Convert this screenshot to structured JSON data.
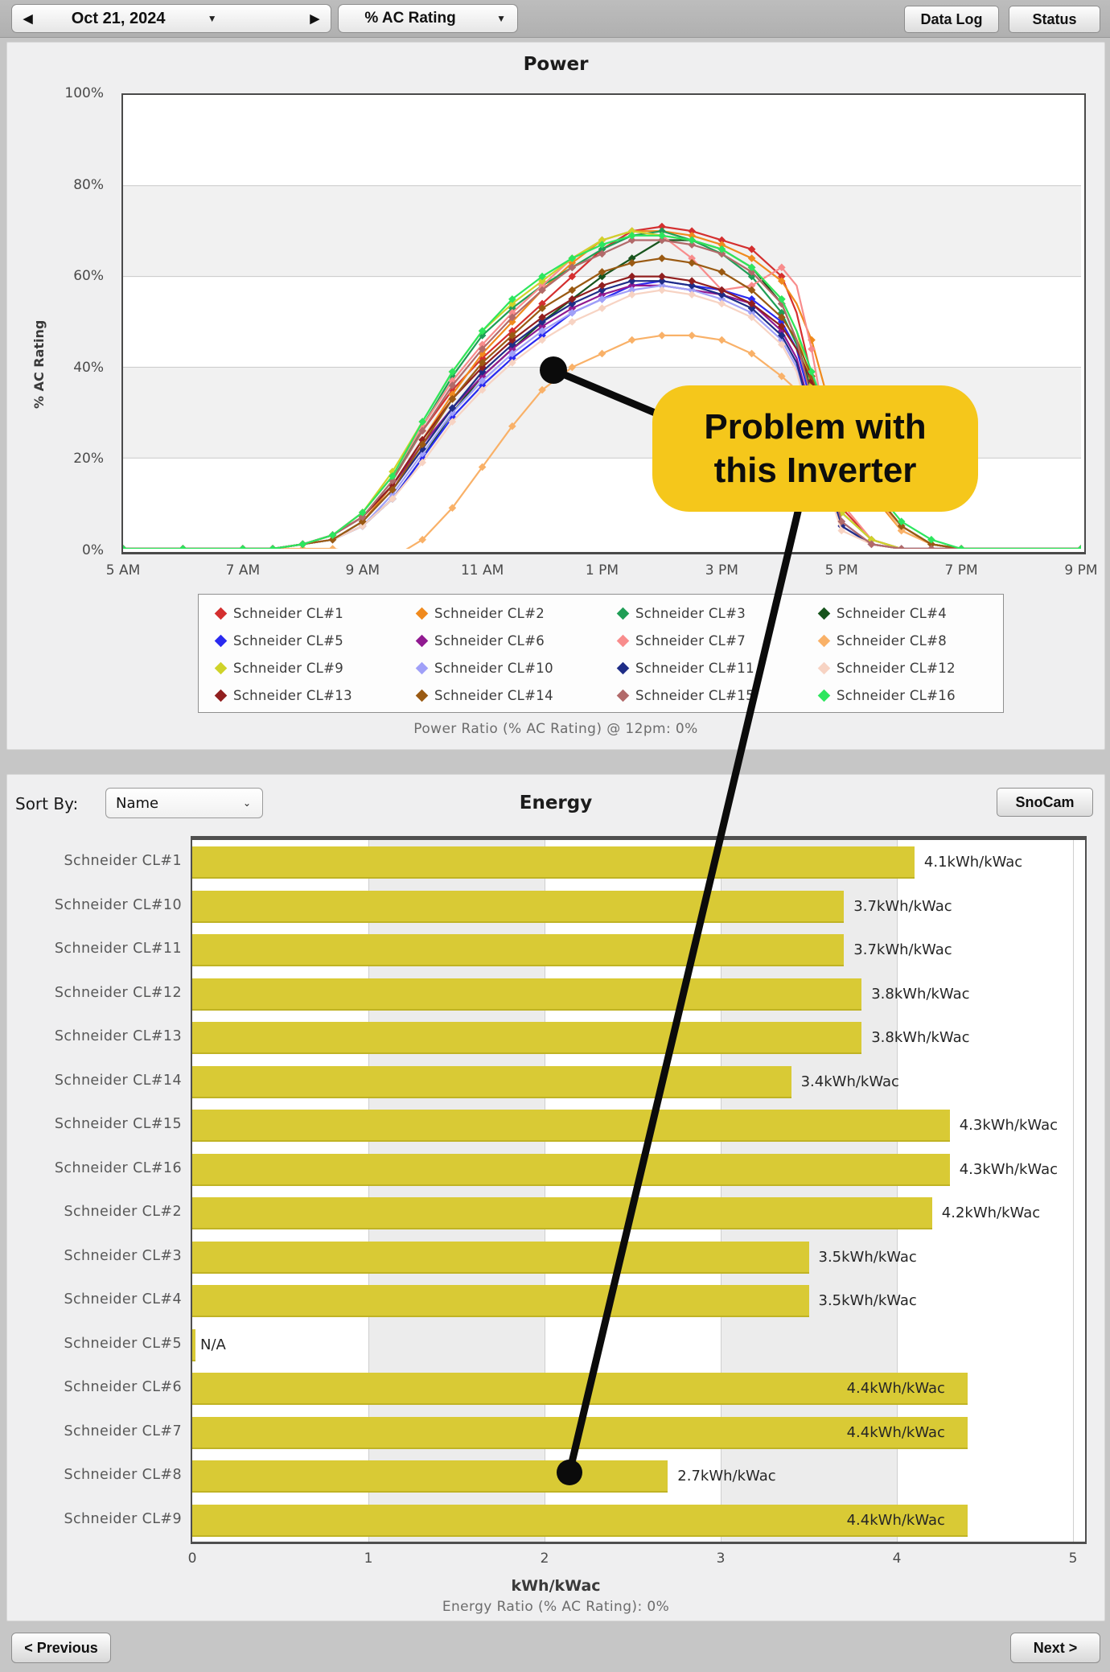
{
  "toolbar": {
    "date": "Oct 21, 2024",
    "metric_selector": "% AC Rating",
    "data_log_label": "Data Log",
    "status_label": "Status",
    "prev_day_icon": "◀",
    "next_day_icon": "▶",
    "dropdown_caret_icon": "▼"
  },
  "power_section": {
    "title": "Power",
    "y_axis_title": "% AC Rating",
    "caption": "Power Ratio (% AC Rating) @ 12pm: 0%"
  },
  "energy_section": {
    "title": "Energy",
    "sort_by_label": "Sort By:",
    "sort_by_value": "Name",
    "snocam_label": "SnoCam",
    "x_axis_title": "kWh/kWac",
    "caption": "Energy Ratio (% AC Rating): 0%",
    "bar_color": "#d9ca35"
  },
  "annotation": {
    "line1": "Problem with",
    "line2": "this Inverter",
    "callout_color": "#f5c71b"
  },
  "nav": {
    "previous_label": "< Previous",
    "next_label": "Next >"
  },
  "chart_data": [
    {
      "type": "line",
      "title": "Power",
      "ylabel": "% AC Rating",
      "ylim": [
        0,
        100
      ],
      "y_ticks": [
        "100%",
        "80%",
        "60%",
        "40%",
        "20%",
        "0%"
      ],
      "x_ticks": [
        "5 AM",
        "7 AM",
        "9 AM",
        "11 AM",
        "1 PM",
        "3 PM",
        "5 PM",
        "7 PM",
        "9 PM"
      ],
      "x_range_hours": [
        5,
        21
      ],
      "grid": "horizontal",
      "legend_position": "bottom",
      "x": [
        5,
        6,
        7,
        7.5,
        8,
        8.5,
        9,
        9.5,
        10,
        10.5,
        11,
        11.5,
        12,
        12.5,
        13,
        13.5,
        14,
        14.5,
        15,
        15.5,
        16,
        16.25,
        16.5,
        16.75,
        17,
        17.5,
        18,
        18.5,
        19,
        21
      ],
      "series": [
        {
          "name": "Schneider CL#1",
          "color": "#d42f2f",
          "values": [
            0,
            0,
            0,
            0,
            1,
            3,
            8,
            16,
            26,
            35,
            42,
            48,
            54,
            60,
            66,
            70,
            71,
            70,
            68,
            66,
            60,
            52,
            38,
            22,
            9,
            2,
            0,
            0,
            0,
            0
          ]
        },
        {
          "name": "Schneider CL#2",
          "color": "#f08a1d",
          "values": [
            0,
            0,
            0,
            0,
            1,
            2,
            6,
            14,
            24,
            34,
            43,
            50,
            57,
            63,
            68,
            70,
            70,
            69,
            67,
            64,
            59,
            54,
            46,
            34,
            22,
            12,
            4,
            1,
            0,
            0
          ]
        },
        {
          "name": "Schneider CL#3",
          "color": "#1f9e56",
          "values": [
            0,
            0,
            0,
            0,
            1,
            3,
            7,
            15,
            27,
            38,
            47,
            53,
            58,
            62,
            66,
            69,
            70,
            68,
            65,
            60,
            52,
            45,
            36,
            28,
            22,
            13,
            5,
            1,
            0,
            0
          ]
        },
        {
          "name": "Schneider CL#4",
          "color": "#17541d",
          "values": [
            0,
            0,
            0,
            0,
            1,
            2,
            5,
            11,
            20,
            30,
            38,
            44,
            50,
            55,
            60,
            64,
            68,
            68,
            66,
            62,
            54,
            46,
            34,
            20,
            8,
            2,
            0,
            0,
            0,
            0
          ]
        },
        {
          "name": "Schneider CL#5",
          "color": "#2a2af0",
          "values": [
            0,
            0,
            0,
            0,
            1,
            2,
            5,
            11,
            20,
            29,
            36,
            42,
            47,
            52,
            55,
            58,
            59,
            58,
            57,
            55,
            50,
            44,
            32,
            18,
            6,
            1,
            0,
            0,
            0,
            0
          ]
        },
        {
          "name": "Schneider CL#6",
          "color": "#911a91",
          "values": [
            0,
            0,
            0,
            0,
            1,
            3,
            7,
            14,
            23,
            31,
            38,
            44,
            49,
            53,
            56,
            58,
            58,
            57,
            56,
            54,
            48,
            42,
            30,
            16,
            5,
            1,
            0,
            0,
            0,
            0
          ]
        },
        {
          "name": "Schneider CL#7",
          "color": "#f88c8c",
          "values": [
            0,
            0,
            0,
            0,
            1,
            3,
            8,
            16,
            27,
            37,
            45,
            52,
            58,
            64,
            68,
            70,
            69,
            64,
            57,
            58,
            62,
            58,
            44,
            26,
            10,
            2,
            0,
            0,
            0,
            0
          ]
        },
        {
          "name": "Schneider CL#8",
          "color": "#f9b168",
          "values": [
            0,
            0,
            0,
            0,
            0,
            0,
            -1,
            -2,
            2,
            9,
            18,
            27,
            35,
            40,
            43,
            46,
            47,
            47,
            46,
            43,
            38,
            35,
            31,
            27,
            22,
            13,
            4,
            1,
            0,
            0
          ]
        },
        {
          "name": "Schneider CL#9",
          "color": "#cfd32a",
          "values": [
            0,
            0,
            0,
            0,
            1,
            3,
            8,
            17,
            28,
            39,
            48,
            54,
            59,
            64,
            68,
            70,
            69,
            68,
            66,
            62,
            55,
            48,
            36,
            22,
            8,
            2,
            0,
            0,
            0,
            0
          ]
        },
        {
          "name": "Schneider CL#10",
          "color": "#a0a0f8",
          "values": [
            0,
            0,
            0,
            0,
            1,
            2,
            5,
            12,
            21,
            30,
            37,
            43,
            48,
            52,
            55,
            57,
            58,
            57,
            55,
            52,
            46,
            40,
            28,
            15,
            5,
            1,
            0,
            0,
            0,
            0
          ]
        },
        {
          "name": "Schneider CL#11",
          "color": "#1f2d87",
          "values": [
            0,
            0,
            0,
            0,
            1,
            2,
            6,
            13,
            22,
            31,
            39,
            45,
            50,
            54,
            57,
            59,
            59,
            58,
            56,
            53,
            47,
            41,
            29,
            16,
            5,
            1,
            0,
            0,
            0,
            0
          ]
        },
        {
          "name": "Schneider CL#12",
          "color": "#f7d3c3",
          "values": [
            0,
            0,
            0,
            0,
            1,
            2,
            5,
            11,
            19,
            28,
            35,
            41,
            46,
            50,
            53,
            56,
            57,
            56,
            54,
            51,
            45,
            39,
            27,
            14,
            4,
            1,
            0,
            0,
            0,
            0
          ]
        },
        {
          "name": "Schneider CL#13",
          "color": "#911f1f",
          "values": [
            0,
            0,
            0,
            0,
            1,
            3,
            7,
            14,
            24,
            33,
            40,
            46,
            51,
            55,
            58,
            60,
            60,
            59,
            57,
            54,
            49,
            44,
            37,
            29,
            22,
            13,
            5,
            1,
            0,
            0
          ]
        },
        {
          "name": "Schneider CL#14",
          "color": "#9a5a13",
          "values": [
            0,
            0,
            0,
            0,
            1,
            2,
            6,
            13,
            23,
            33,
            41,
            47,
            53,
            57,
            61,
            63,
            64,
            63,
            61,
            57,
            51,
            46,
            38,
            30,
            23,
            13,
            5,
            1,
            0,
            0
          ]
        },
        {
          "name": "Schneider CL#15",
          "color": "#b26a6a",
          "values": [
            0,
            0,
            0,
            0,
            1,
            3,
            7,
            15,
            26,
            36,
            44,
            51,
            57,
            62,
            65,
            68,
            68,
            67,
            65,
            61,
            54,
            46,
            33,
            18,
            6,
            1,
            0,
            0,
            0,
            0
          ]
        },
        {
          "name": "Schneider CL#16",
          "color": "#2de65e",
          "values": [
            0,
            0,
            0,
            0,
            1,
            3,
            8,
            16,
            28,
            39,
            48,
            55,
            60,
            64,
            67,
            69,
            69,
            68,
            66,
            62,
            55,
            48,
            39,
            30,
            23,
            14,
            6,
            2,
            0,
            0
          ]
        }
      ]
    },
    {
      "type": "bar",
      "title": "Energy",
      "xlabel": "kWh/kWac",
      "xlim": [
        0,
        5
      ],
      "x_ticks": [
        "0",
        "1",
        "2",
        "3",
        "4",
        "5"
      ],
      "grid": "vertical",
      "rows": [
        {
          "label": "Schneider CL#1",
          "value": 4.1,
          "display": "4.1kWh/kWac",
          "label_inside": false
        },
        {
          "label": "Schneider CL#10",
          "value": 3.7,
          "display": "3.7kWh/kWac",
          "label_inside": false
        },
        {
          "label": "Schneider CL#11",
          "value": 3.7,
          "display": "3.7kWh/kWac",
          "label_inside": false
        },
        {
          "label": "Schneider CL#12",
          "value": 3.8,
          "display": "3.8kWh/kWac",
          "label_inside": false
        },
        {
          "label": "Schneider CL#13",
          "value": 3.8,
          "display": "3.8kWh/kWac",
          "label_inside": false
        },
        {
          "label": "Schneider CL#14",
          "value": 3.4,
          "display": "3.4kWh/kWac",
          "label_inside": false
        },
        {
          "label": "Schneider CL#15",
          "value": 4.3,
          "display": "4.3kWh/kWac",
          "label_inside": false
        },
        {
          "label": "Schneider CL#16",
          "value": 4.3,
          "display": "4.3kWh/kWac",
          "label_inside": false
        },
        {
          "label": "Schneider CL#2",
          "value": 4.2,
          "display": "4.2kWh/kWac",
          "label_inside": false
        },
        {
          "label": "Schneider CL#3",
          "value": 3.5,
          "display": "3.5kWh/kWac",
          "label_inside": false
        },
        {
          "label": "Schneider CL#4",
          "value": 3.5,
          "display": "3.5kWh/kWac",
          "label_inside": false
        },
        {
          "label": "Schneider CL#5",
          "value": null,
          "display": "N/A",
          "label_inside": false
        },
        {
          "label": "Schneider CL#6",
          "value": 4.4,
          "display": "4.4kWh/kWac",
          "label_inside": true
        },
        {
          "label": "Schneider CL#7",
          "value": 4.4,
          "display": "4.4kWh/kWac",
          "label_inside": true
        },
        {
          "label": "Schneider CL#8",
          "value": 2.7,
          "display": "2.7kWh/kWac",
          "label_inside": false
        },
        {
          "label": "Schneider CL#9",
          "value": 4.4,
          "display": "4.4kWh/kWac",
          "label_inside": true
        }
      ]
    }
  ]
}
